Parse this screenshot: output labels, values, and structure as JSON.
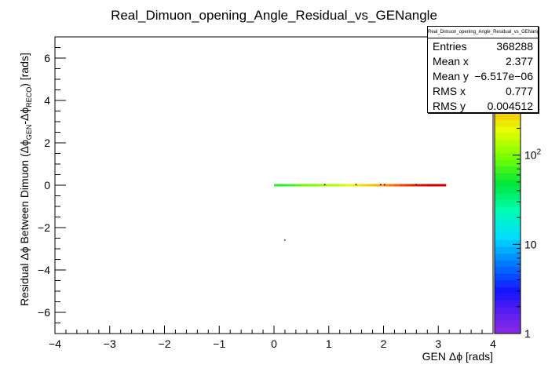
{
  "chart_data": {
    "type": "heatmap",
    "title": "Real_Dimuon_opening_Angle_Residual_vs_GENangle",
    "xlabel": "GEN Δϕ [rads]",
    "ylabel_parts": {
      "prefix": "Residual Δϕ Between Dimuon (Δϕ",
      "sub1": "GEN",
      "mid": "-Δϕ",
      "sub2": "RECO",
      "suffix": ") [rads]"
    },
    "xlim": [
      -4,
      4
    ],
    "ylim": [
      -7,
      7
    ],
    "x_ticks": [
      -4,
      -3,
      -2,
      -1,
      0,
      1,
      2,
      3,
      4
    ],
    "x_tick_labels": [
      "−4",
      "−3",
      "−2",
      "−1",
      "0",
      "1",
      "2",
      "3",
      "4"
    ],
    "y_ticks": [
      -6,
      -4,
      -2,
      0,
      2,
      4,
      6
    ],
    "y_tick_labels": [
      "−6",
      "−4",
      "−2",
      "0",
      "2",
      "4",
      "6"
    ],
    "colorbar": {
      "scale": "log",
      "min": 1,
      "max": 1000,
      "tick_labels": [
        {
          "value": 1,
          "label": "1"
        },
        {
          "value": 10,
          "label": "10"
        },
        {
          "value": 100,
          "label": "10",
          "exponent": "2"
        },
        {
          "value": 1000,
          "label": "",
          "exponent": "3"
        }
      ]
    },
    "band": {
      "x_range": [
        0,
        3.14
      ],
      "y": 0,
      "counts": [
        {
          "x": 0.0,
          "c": 60
        },
        {
          "x": 0.1,
          "c": 60
        },
        {
          "x": 0.2,
          "c": 65
        },
        {
          "x": 0.3,
          "c": 70
        },
        {
          "x": 0.4,
          "c": 80
        },
        {
          "x": 0.5,
          "c": 90
        },
        {
          "x": 0.6,
          "c": 95
        },
        {
          "x": 0.7,
          "c": 100
        },
        {
          "x": 0.8,
          "c": 110
        },
        {
          "x": 0.9,
          "c": 120
        },
        {
          "x": 1.0,
          "c": 130
        },
        {
          "x": 1.1,
          "c": 140
        },
        {
          "x": 1.2,
          "c": 160
        },
        {
          "x": 1.3,
          "c": 180
        },
        {
          "x": 1.4,
          "c": 200
        },
        {
          "x": 1.5,
          "c": 230
        },
        {
          "x": 1.6,
          "c": 260
        },
        {
          "x": 1.7,
          "c": 300
        },
        {
          "x": 1.8,
          "c": 340
        },
        {
          "x": 1.9,
          "c": 390
        },
        {
          "x": 2.0,
          "c": 450
        },
        {
          "x": 2.1,
          "c": 520
        },
        {
          "x": 2.2,
          "c": 600
        },
        {
          "x": 2.3,
          "c": 680
        },
        {
          "x": 2.4,
          "c": 750
        },
        {
          "x": 2.5,
          "c": 820
        },
        {
          "x": 2.6,
          "c": 880
        },
        {
          "x": 2.7,
          "c": 930
        },
        {
          "x": 2.8,
          "c": 980
        },
        {
          "x": 2.9,
          "c": 1000
        },
        {
          "x": 3.0,
          "c": 1000
        },
        {
          "x": 3.1,
          "c": 1000
        }
      ]
    },
    "outliers": [
      {
        "x": 0.93,
        "y": 0.02,
        "c": 8
      },
      {
        "x": 1.5,
        "y": 0.02,
        "c": 5
      },
      {
        "x": 1.95,
        "y": 0.02,
        "c": 12
      },
      {
        "x": 2.02,
        "y": 0.02,
        "c": 6
      },
      {
        "x": 2.6,
        "y": 0.02,
        "c": 4
      },
      {
        "x": 0.2,
        "y": -2.6,
        "c": 1
      }
    ]
  },
  "stats_box": {
    "title": "Real_Dimuon_opening_Angle_Residual_vs_GENangle",
    "rows": [
      {
        "key": "Entries",
        "value": "368288"
      },
      {
        "key": "Mean x",
        "value": "2.377"
      },
      {
        "key": "Mean y",
        "value": "−6.517e−06"
      },
      {
        "key": "RMS x",
        "value": "0.777"
      },
      {
        "key": "RMS y",
        "value": "0.004512"
      }
    ]
  }
}
